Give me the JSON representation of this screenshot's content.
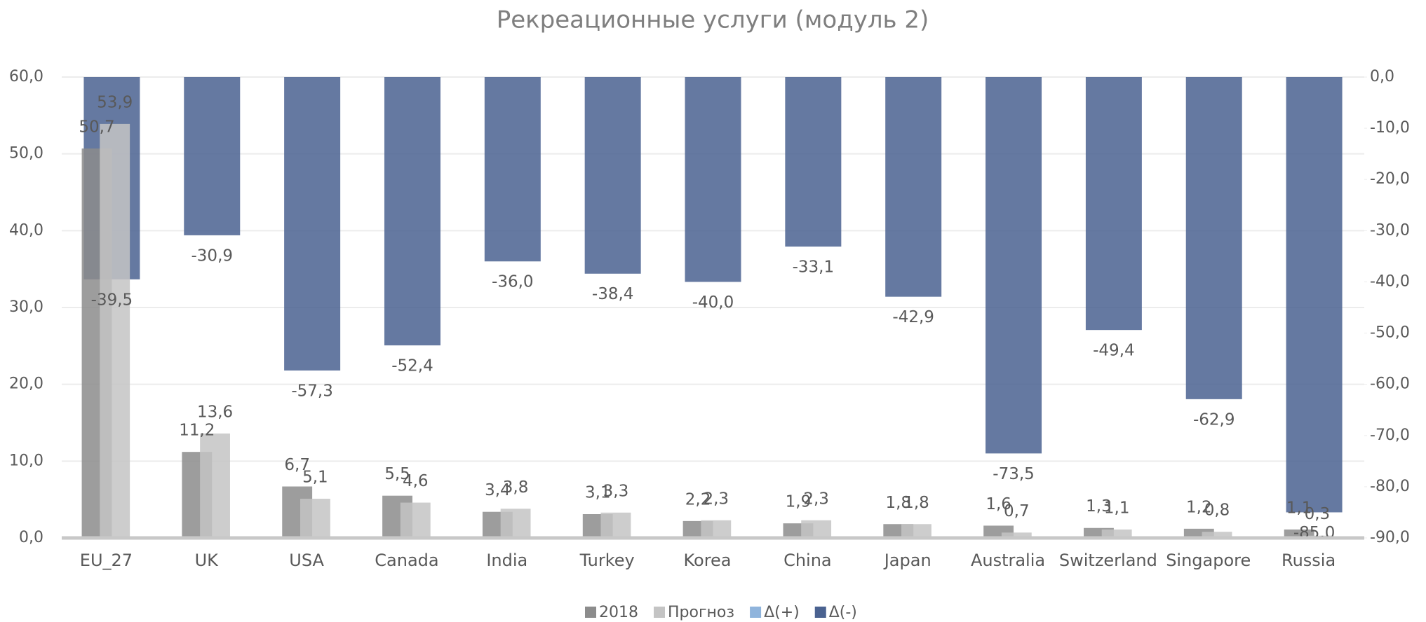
{
  "chart_data": {
    "type": "bar",
    "title": "Рекреационные услуги (модуль 2)",
    "categories": [
      "EU_27",
      "UK",
      "USA",
      "Canada",
      "India",
      "Turkey",
      "Korea",
      "China",
      "Japan",
      "Australia",
      "Switzerland",
      "Singapore",
      "Russia"
    ],
    "series": [
      {
        "name": "2018",
        "color": "#8c8c8c",
        "values": [
          50.7,
          11.2,
          6.7,
          5.5,
          3.4,
          3.1,
          2.2,
          1.9,
          1.8,
          1.6,
          1.3,
          1.2,
          1.1
        ],
        "value_labels": [
          "50,7",
          "11,2",
          "6,7",
          "5,5",
          "3,4",
          "3,1",
          "2,2",
          "1,9",
          "1,8",
          "1,6",
          "1,3",
          "1,2",
          "1,1"
        ]
      },
      {
        "name": "Прогноз",
        "color": "#c4c4c4",
        "values": [
          53.9,
          13.6,
          5.1,
          4.6,
          3.8,
          3.3,
          2.3,
          2.3,
          1.8,
          0.7,
          1.1,
          0.8,
          0.3
        ],
        "value_labels": [
          "53,9",
          "13,6",
          "5,1",
          "4,6",
          "3,8",
          "3,3",
          "2,3",
          "2,3",
          "1,8",
          "0,7",
          "1,1",
          "0,8",
          "0,3"
        ]
      },
      {
        "name": "Δ(+)",
        "color": "#8fb4dc",
        "axis": "y2",
        "values": [
          null,
          null,
          null,
          null,
          null,
          null,
          null,
          null,
          null,
          null,
          null,
          null,
          null
        ]
      },
      {
        "name": "Δ(-)",
        "color": "#4a6290",
        "axis": "y2",
        "values": [
          -39.5,
          -30.9,
          -57.3,
          -52.4,
          -36.0,
          -38.4,
          -40.0,
          -33.1,
          -42.9,
          -73.5,
          -49.4,
          -62.9,
          -85.0
        ],
        "value_labels": [
          "-39,5",
          "-30,9",
          "-57,3",
          "-52,4",
          "-36,0",
          "-38,4",
          "-40,0",
          "-33,1",
          "-42,9",
          "-73,5",
          "-49,4",
          "-62,9",
          "-85,0"
        ]
      }
    ],
    "ylim": [
      0,
      60
    ],
    "yticks": [
      {
        "value": 0,
        "label": "0,0"
      },
      {
        "value": 10,
        "label": "10,0"
      },
      {
        "value": 20,
        "label": "20,0"
      },
      {
        "value": 30,
        "label": "30,0"
      },
      {
        "value": 40,
        "label": "40,0"
      },
      {
        "value": 50,
        "label": "50,0"
      },
      {
        "value": 60,
        "label": "60,0"
      }
    ],
    "y2lim": [
      -90,
      0
    ],
    "y2ticks": [
      {
        "value": 0,
        "label": "0,0"
      },
      {
        "value": -10,
        "label": "-10,0"
      },
      {
        "value": -20,
        "label": "-20,0"
      },
      {
        "value": -30,
        "label": "-30,0"
      },
      {
        "value": -40,
        "label": "-40,0"
      },
      {
        "value": -50,
        "label": "-50,0"
      },
      {
        "value": -60,
        "label": "-60,0"
      },
      {
        "value": -70,
        "label": "-70,0"
      },
      {
        "value": -80,
        "label": "-80,0"
      },
      {
        "value": -90,
        "label": "-90,0"
      }
    ],
    "grid": true,
    "legend": "bottom"
  }
}
